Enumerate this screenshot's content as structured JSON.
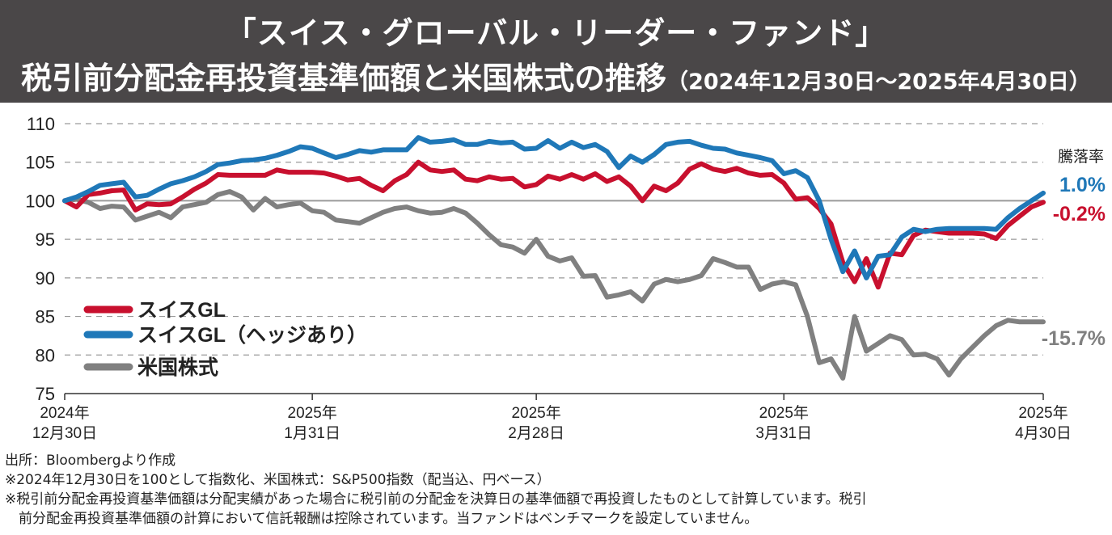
{
  "title": {
    "line1": "「スイス・グローバル・リーダー・ファンド」",
    "line2": "税引前分配金再投資基準価額と米国株式の推移",
    "period": "（2024年12月30日〜2025年4月30日）"
  },
  "notes": [
    "出所：Bloombergより作成",
    "※2024年12月30日を100として指数化、米国株式：S&P500指数（配当込、円ベース）",
    "※税引前分配金再投資基準価額は分配実績があった場合に税引前の分配金を決算日の基準価額で再投資したものとして計算しています。税引",
    "　前分配金再投資基準価額の計算において信託報酬は控除されています。当ファンドはベンチマークを設定していません。"
  ],
  "chart_data": {
    "type": "line",
    "title": "",
    "xlabel": "",
    "ylabel": "",
    "ylim": [
      75,
      110
    ],
    "yticks": [
      75,
      80,
      85,
      90,
      95,
      100,
      105,
      110
    ],
    "grid": "horizontal dashed",
    "reference_line": 100,
    "legend_position": "bottom-left",
    "x_ticks": [
      {
        "i": 0,
        "line1": "2024年",
        "line2": "12月30日"
      },
      {
        "i": 21,
        "line1": "2025年",
        "line2": "1月31日"
      },
      {
        "i": 40,
        "line1": "2025年",
        "line2": "2月28日"
      },
      {
        "i": 61,
        "line1": "2025年",
        "line2": "3月31日"
      },
      {
        "i": 83,
        "line1": "2025年",
        "line2": "4月30日"
      }
    ],
    "change_header": "騰落率",
    "series": [
      {
        "name": "スイスGL",
        "color": "#c8102e",
        "change_label": "-0.2%",
        "values": [
          100.0,
          99.2,
          100.8,
          101.0,
          101.3,
          101.4,
          98.8,
          99.6,
          99.5,
          99.6,
          100.5,
          101.5,
          102.3,
          103.4,
          103.3,
          103.3,
          103.3,
          103.3,
          104.0,
          103.7,
          103.7,
          103.7,
          103.6,
          103.2,
          102.7,
          102.9,
          102.0,
          101.3,
          102.6,
          103.4,
          105.0,
          104.0,
          103.8,
          104.0,
          102.8,
          102.6,
          103.1,
          102.8,
          102.9,
          101.8,
          102.1,
          103.2,
          102.8,
          103.4,
          102.8,
          103.5,
          102.5,
          103.1,
          101.9,
          100.0,
          101.9,
          101.3,
          102.3,
          104.1,
          104.8,
          104.1,
          103.8,
          104.2,
          103.6,
          103.3,
          103.4,
          102.3,
          100.2,
          100.4,
          99.0,
          97.0,
          92.0,
          89.5,
          92.5,
          88.8,
          93.2,
          93.0,
          95.5,
          96.2,
          96.0,
          95.8,
          95.8,
          95.8,
          95.7,
          95.1,
          96.8,
          98.0,
          99.2,
          99.8
        ]
      },
      {
        "name": "スイスGL（ヘッジあり）",
        "color": "#1f78b8",
        "change_label": "1.0%",
        "values": [
          100.0,
          100.5,
          101.2,
          102.0,
          102.2,
          102.4,
          100.5,
          100.7,
          101.5,
          102.2,
          102.6,
          103.1,
          103.8,
          104.7,
          104.9,
          105.2,
          105.3,
          105.5,
          105.9,
          106.4,
          107.0,
          106.8,
          106.2,
          105.6,
          106.0,
          106.5,
          106.3,
          106.6,
          106.6,
          106.6,
          108.2,
          107.6,
          107.7,
          107.9,
          107.3,
          107.3,
          107.7,
          107.5,
          107.6,
          106.7,
          106.8,
          107.8,
          106.8,
          107.6,
          106.9,
          107.3,
          106.4,
          104.3,
          105.8,
          105.0,
          106.0,
          107.3,
          107.6,
          107.7,
          107.2,
          106.8,
          106.7,
          106.2,
          105.9,
          105.6,
          105.2,
          103.5,
          103.9,
          103.0,
          100.0,
          95.0,
          90.8,
          93.5,
          90.0,
          92.8,
          93.0,
          95.3,
          96.3,
          96.0,
          96.3,
          96.4,
          96.4,
          96.4,
          96.4,
          96.3,
          97.8,
          99.0,
          100.0,
          101.0
        ]
      },
      {
        "name": "米国株式",
        "color": "#808080",
        "change_label": "-15.7%",
        "values": [
          100.0,
          100.2,
          99.8,
          99.0,
          99.3,
          99.2,
          97.5,
          98.0,
          98.5,
          97.8,
          99.2,
          99.5,
          99.8,
          100.8,
          101.2,
          100.5,
          98.8,
          100.3,
          99.2,
          99.5,
          99.7,
          98.7,
          98.5,
          97.5,
          97.3,
          97.1,
          97.8,
          98.5,
          99.0,
          99.2,
          98.7,
          98.4,
          98.5,
          99.0,
          98.4,
          97.1,
          95.6,
          94.3,
          94.0,
          93.2,
          95.0,
          92.8,
          92.2,
          92.6,
          90.2,
          90.3,
          87.5,
          87.8,
          88.2,
          87.0,
          89.2,
          89.8,
          89.5,
          89.8,
          90.3,
          92.5,
          92.0,
          91.4,
          91.4,
          88.5,
          89.2,
          89.5,
          89.1,
          85.0,
          79.0,
          79.5,
          77.0,
          85.0,
          80.5,
          81.5,
          82.5,
          82.0,
          80.0,
          80.1,
          79.5,
          77.4,
          79.5,
          81.0,
          82.5,
          83.8,
          84.5,
          84.3,
          84.3,
          84.3
        ]
      }
    ]
  }
}
